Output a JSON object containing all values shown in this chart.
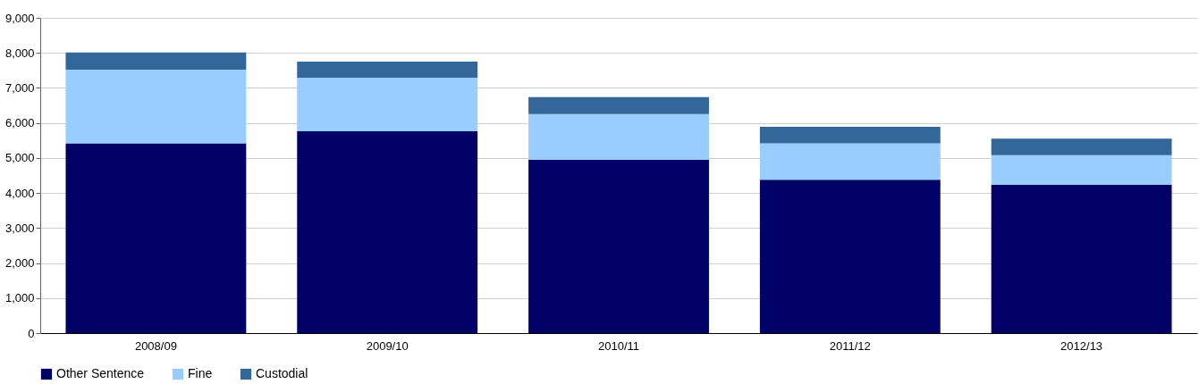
{
  "chart_data": {
    "type": "bar",
    "stacked": true,
    "categories": [
      "2008/09",
      "2009/10",
      "2010/11",
      "2011/12",
      "2012/13"
    ],
    "series": [
      {
        "name": "Other Sentence",
        "color": "#000066",
        "values": [
          5420,
          5760,
          4950,
          4380,
          4230
        ]
      },
      {
        "name": "Fine",
        "color": "#99ccff",
        "values": [
          2100,
          1530,
          1300,
          1040,
          850
        ]
      },
      {
        "name": "Custodial",
        "color": "#336699",
        "values": [
          490,
          460,
          490,
          470,
          470
        ]
      }
    ],
    "ylim": [
      0,
      9000
    ],
    "yticks": [
      0,
      {
        "value": 1000,
        "label": "1,000"
      },
      {
        "value": 2000,
        "label": "2,000"
      },
      {
        "value": 3000,
        "label": "3,000"
      },
      {
        "value": 4000,
        "label": "4,000"
      },
      {
        "value": 5000,
        "label": "5,000"
      },
      {
        "value": 6000,
        "label": "6,000"
      },
      {
        "value": 7000,
        "label": "7,000"
      },
      {
        "value": 8000,
        "label": "8,000"
      },
      {
        "value": 9000,
        "label": "9,000"
      }
    ],
    "grid": "y",
    "legend": "bottom"
  }
}
